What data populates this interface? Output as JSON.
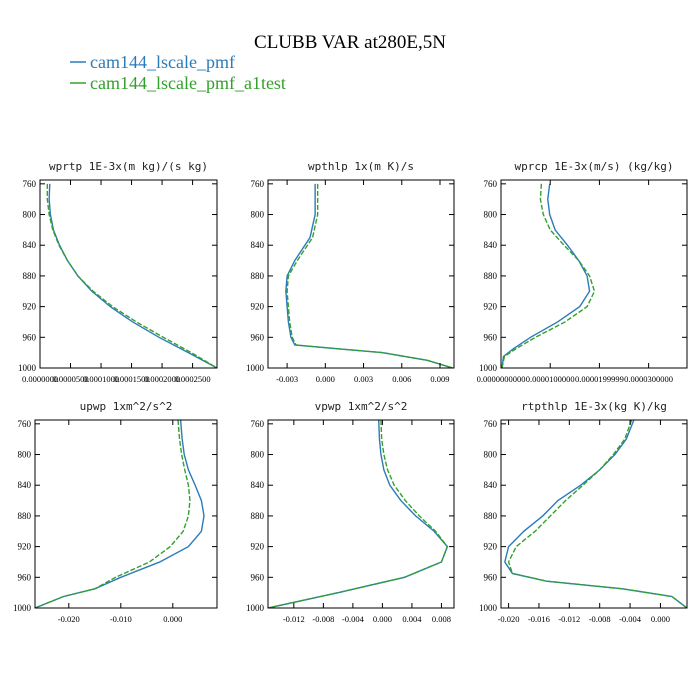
{
  "figure": {
    "title": "CLUBB VAR at280E,5N",
    "legend": [
      {
        "name": "cam144_lscale_pmf",
        "color": "#2b7bb9",
        "dash": "solid"
      },
      {
        "name": "cam144_lscale_pmf_a1test",
        "color": "#33a02c",
        "dash": "dashed"
      }
    ]
  },
  "chart_data": [
    {
      "type": "line",
      "title": "wprtp 1E-3x(m kg)/(s kg)",
      "xlim": [
        0,
        0.00029
      ],
      "ylim": [
        1000,
        755
      ],
      "xticks": [
        0,
        5e-05,
        0.0001,
        0.00015,
        0.0002,
        0.00025
      ],
      "xtick_labels": [
        "0.0000000",
        "0.0000500",
        "0.0001000",
        "0.0001500",
        "0.0002000",
        "0.0002500"
      ],
      "yticks": [
        760,
        800,
        840,
        880,
        920,
        960,
        1000
      ],
      "y": [
        760,
        780,
        800,
        820,
        840,
        860,
        880,
        900,
        920,
        940,
        960,
        980,
        1000
      ],
      "series": [
        {
          "name": "cam144_lscale_pmf",
          "values": [
            1.6e-05,
            1.5e-05,
            1.7e-05,
            2.2e-05,
            3.2e-05,
            4.5e-05,
            6.2e-05,
            8.5e-05,
            0.000115,
            0.000152,
            0.000195,
            0.000243,
            0.00029
          ]
        },
        {
          "name": "cam144_lscale_pmf_a1test",
          "values": [
            1.2e-05,
            1.2e-05,
            1.5e-05,
            2.1e-05,
            3.1e-05,
            4.5e-05,
            6.2e-05,
            8.7e-05,
            0.000119,
            0.000158,
            0.000202,
            0.000248,
            0.00029
          ]
        }
      ]
    },
    {
      "type": "line",
      "title": "wpthlp 1x(m K)/s",
      "xlim": [
        -0.0045,
        0.0101
      ],
      "ylim": [
        1000,
        755
      ],
      "xticks": [
        -0.003,
        0,
        0.003,
        0.006,
        0.009
      ],
      "xtick_labels": [
        "-0.003",
        "0.000",
        "0.003",
        "0.006",
        "0.009"
      ],
      "yticks": [
        760,
        800,
        840,
        880,
        920,
        960,
        1000
      ],
      "y": [
        760,
        800,
        830,
        860,
        880,
        900,
        920,
        940,
        960,
        970,
        975,
        980,
        990,
        1000
      ],
      "series": [
        {
          "name": "cam144_lscale_pmf",
          "values": [
            -0.0008,
            -0.0008,
            -0.0012,
            -0.0024,
            -0.003,
            -0.0031,
            -0.003,
            -0.0029,
            -0.0027,
            -0.0024,
            0.001,
            0.0045,
            0.008,
            0.01
          ]
        },
        {
          "name": "cam144_lscale_pmf_a1test",
          "values": [
            -0.0006,
            -0.0006,
            -0.001,
            -0.0022,
            -0.0029,
            -0.003,
            -0.0029,
            -0.0028,
            -0.0026,
            -0.0023,
            0.001,
            0.0045,
            0.008,
            0.01
          ]
        }
      ]
    },
    {
      "type": "line",
      "title": "wprcp 1E-3x(m/s) (kg/kg)",
      "xlim": [
        0,
        3.78e-05
      ],
      "ylim": [
        1000,
        755
      ],
      "xticks": [
        0,
        1e-05,
        2e-05,
        3e-05
      ],
      "xtick_labels": [
        "0.0000000000",
        "0.0000100000",
        "0.0000199999",
        "0.0000300000"
      ],
      "yticks": [
        760,
        800,
        840,
        880,
        920,
        960,
        1000
      ],
      "y": [
        760,
        780,
        800,
        820,
        840,
        860,
        880,
        900,
        920,
        940,
        960,
        975,
        985,
        1000
      ],
      "series": [
        {
          "name": "cam144_lscale_pmf",
          "values": [
            9.9e-06,
            9.5e-06,
            9.9e-06,
            1.1e-05,
            1.35e-05,
            1.58e-05,
            1.75e-05,
            1.8e-05,
            1.6e-05,
            1.15e-05,
            6e-06,
            2.5e-06,
            5e-07,
            2e-07
          ]
        },
        {
          "name": "cam144_lscale_pmf_a1test",
          "values": [
            8.2e-06,
            8e-06,
            8.6e-06,
            1e-05,
            1.28e-05,
            1.58e-05,
            1.8e-05,
            1.9e-05,
            1.75e-05,
            1.3e-05,
            7e-06,
            3e-06,
            7e-07,
            2e-07
          ]
        }
      ]
    },
    {
      "type": "line",
      "title": "upwp 1xm^2/s^2",
      "xlim": [
        -0.0265,
        0.0085
      ],
      "ylim": [
        1000,
        755
      ],
      "xticks": [
        -0.02,
        -0.01,
        0
      ],
      "xtick_labels": [
        "-0.020",
        "-0.010",
        "0.000"
      ],
      "yticks": [
        760,
        800,
        840,
        880,
        920,
        960,
        1000
      ],
      "y": [
        755,
        780,
        800,
        820,
        840,
        860,
        880,
        900,
        920,
        940,
        960,
        975,
        985,
        1000
      ],
      "series": [
        {
          "name": "cam144_lscale_pmf",
          "values": [
            0.0015,
            0.0018,
            0.0022,
            0.003,
            0.0043,
            0.0055,
            0.006,
            0.0055,
            0.003,
            -0.0025,
            -0.01,
            -0.015,
            -0.021,
            -0.0265
          ]
        },
        {
          "name": "cam144_lscale_pmf_a1test",
          "values": [
            0.001,
            0.0013,
            0.0017,
            0.0023,
            0.003,
            0.0033,
            0.003,
            0.002,
            -0.0005,
            -0.0045,
            -0.011,
            -0.015,
            -0.021,
            -0.0265
          ]
        }
      ]
    },
    {
      "type": "line",
      "title": "vpwp 1xm^2/s^2",
      "xlim": [
        -0.0155,
        0.0097
      ],
      "ylim": [
        1000,
        755
      ],
      "xticks": [
        -0.012,
        -0.008,
        -0.004,
        0,
        0.004,
        0.008
      ],
      "xtick_labels": [
        "-0.012",
        "-0.008",
        "-0.004",
        "0.000",
        "0.004",
        "0.008"
      ],
      "yticks": [
        760,
        800,
        840,
        880,
        920,
        960,
        1000
      ],
      "y": [
        755,
        780,
        800,
        820,
        840,
        860,
        880,
        900,
        920,
        940,
        960,
        980,
        1000
      ],
      "series": [
        {
          "name": "cam144_lscale_pmf",
          "values": [
            -0.0005,
            -0.0004,
            -0.0002,
            0.0002,
            0.001,
            0.0025,
            0.0045,
            0.007,
            0.0088,
            0.008,
            0.003,
            -0.006,
            -0.0155
          ]
        },
        {
          "name": "cam144_lscale_pmf_a1test",
          "values": [
            -0.0002,
            -0.0001,
            0.0002,
            0.0007,
            0.0016,
            0.0031,
            0.005,
            0.0072,
            0.0088,
            0.008,
            0.003,
            -0.006,
            -0.0155
          ]
        }
      ]
    },
    {
      "type": "line",
      "title": "rtpthlp 1E-3x(kg K)/kg",
      "xlim": [
        -0.021,
        0.0035
      ],
      "ylim": [
        1000,
        755
      ],
      "xticks": [
        -0.02,
        -0.016,
        -0.012,
        -0.008,
        -0.004,
        0
      ],
      "xtick_labels": [
        "-0.020",
        "-0.016",
        "-0.012",
        "-0.008",
        "-0.004",
        "0.000"
      ],
      "yticks": [
        760,
        800,
        840,
        880,
        920,
        960,
        1000
      ],
      "y": [
        755,
        780,
        800,
        820,
        840,
        860,
        880,
        900,
        920,
        940,
        955,
        965,
        975,
        985,
        1000
      ],
      "series": [
        {
          "name": "cam144_lscale_pmf",
          "values": [
            -0.0035,
            -0.0045,
            -0.006,
            -0.008,
            -0.0105,
            -0.0135,
            -0.0155,
            -0.018,
            -0.02,
            -0.0205,
            -0.0195,
            -0.015,
            -0.005,
            0.0015,
            0.0035
          ]
        },
        {
          "name": "cam144_lscale_pmf_a1test",
          "values": [
            -0.0038,
            -0.0047,
            -0.0062,
            -0.008,
            -0.0102,
            -0.0125,
            -0.0145,
            -0.0165,
            -0.019,
            -0.02,
            -0.0195,
            -0.015,
            -0.005,
            0.0015,
            0.0035
          ]
        }
      ]
    }
  ]
}
